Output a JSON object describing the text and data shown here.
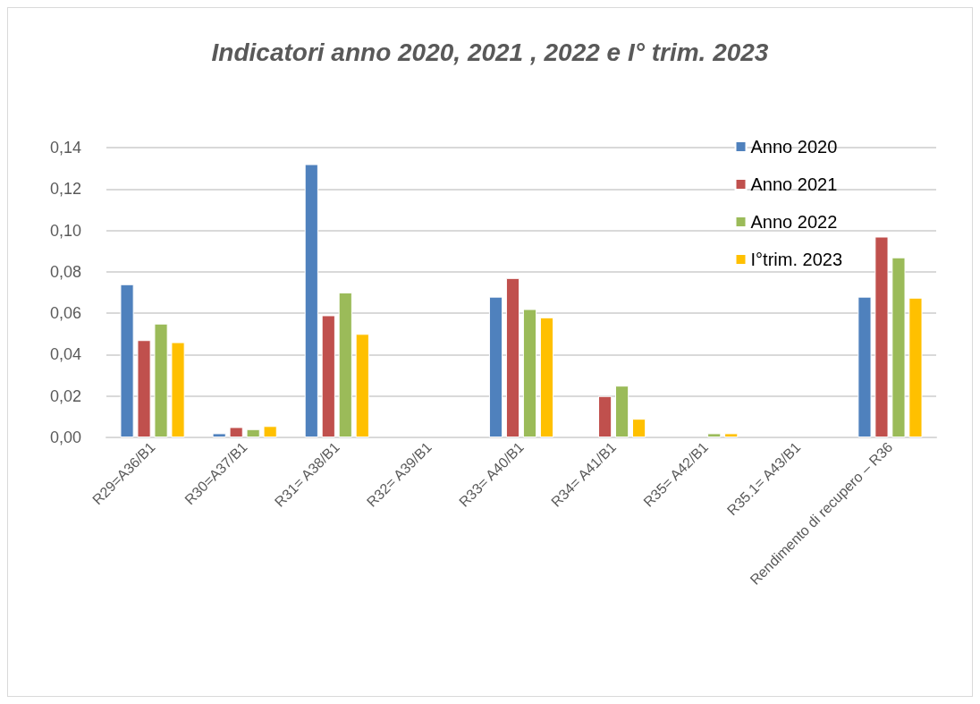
{
  "chart_data": {
    "type": "bar",
    "title": "Indicatori anno 2020, 2021 , 2022 e I° trim. 2023",
    "categories": [
      "R29=A36/B1",
      "R30=A37/B1",
      "R31= A38/B1",
      "R32= A39/B1",
      "R33= A40/B1",
      "R34= A41/B1",
      "R35= A42/B1",
      "R35.1= A43/B1",
      "Rendimento di recupero – R36"
    ],
    "series": [
      {
        "name": "Anno 2020",
        "color": "#4f81bd",
        "values": [
          0.074,
          0.002,
          0.132,
          null,
          0.068,
          null,
          null,
          null,
          0.068
        ]
      },
      {
        "name": "Anno 2021",
        "color": "#c0504d",
        "values": [
          0.047,
          0.005,
          0.059,
          null,
          0.077,
          0.02,
          null,
          null,
          0.097
        ]
      },
      {
        "name": "Anno 2022",
        "color": "#9bbb59",
        "values": [
          0.055,
          0.004,
          0.07,
          null,
          0.062,
          0.025,
          0.002,
          null,
          0.087
        ]
      },
      {
        "name": "I°trim. 2023",
        "color": "#ffc000",
        "values": [
          0.046,
          0.0055,
          0.05,
          null,
          0.058,
          0.009,
          0.002,
          null,
          0.0675
        ]
      }
    ],
    "ylim": [
      0,
      0.14
    ],
    "yticks": [
      {
        "value": 0,
        "label": "0,00"
      },
      {
        "value": 0.02,
        "label": "0,02"
      },
      {
        "value": 0.04,
        "label": "0,04"
      },
      {
        "value": 0.06,
        "label": "0,06"
      },
      {
        "value": 0.08,
        "label": "0,08"
      },
      {
        "value": 0.1,
        "label": "0,10"
      },
      {
        "value": 0.12,
        "label": "0,12"
      },
      {
        "value": 0.14,
        "label": "0,14"
      }
    ],
    "grid": "y",
    "legend": "top right"
  }
}
